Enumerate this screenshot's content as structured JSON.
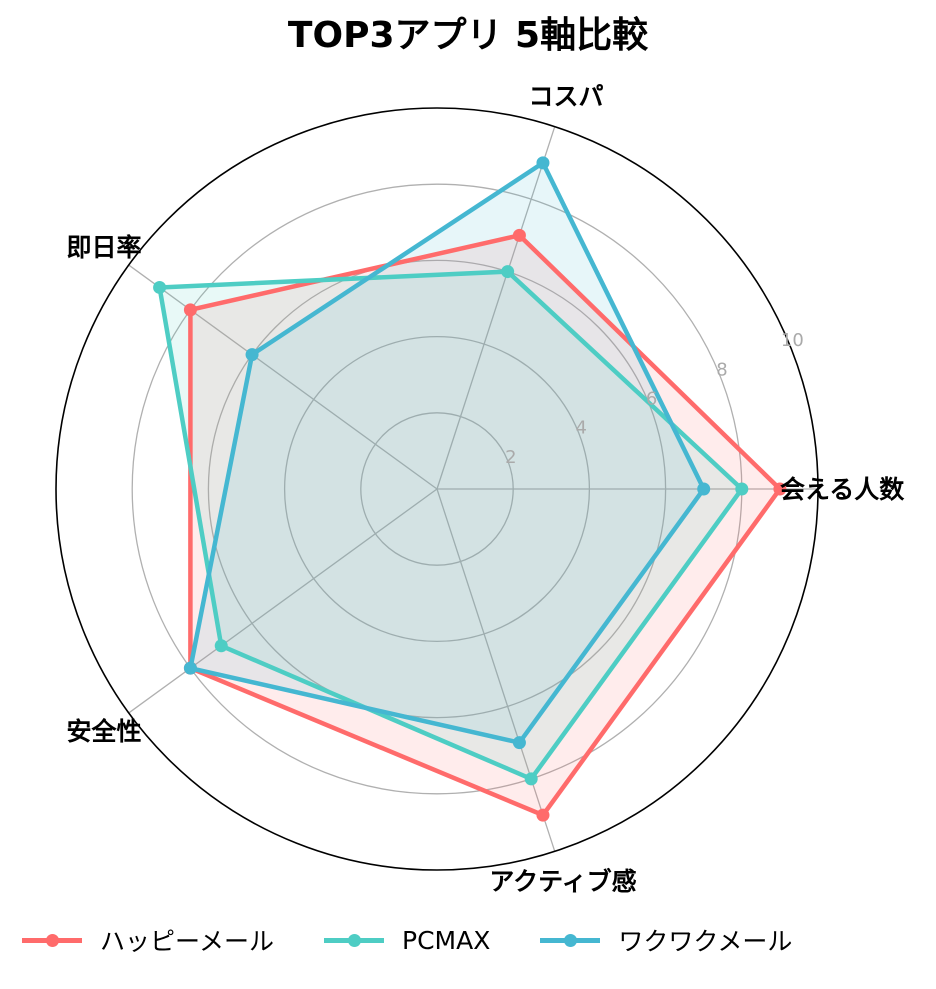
{
  "chart_data": {
    "type": "radar",
    "title": "TOP3アプリ 5軸比較",
    "axes": [
      "会える人数",
      "コスパ",
      "即日率",
      "安全性",
      "アクティブ感"
    ],
    "rlim": [
      0,
      10
    ],
    "rticks": [
      2,
      4,
      6,
      8,
      10
    ],
    "grid": true,
    "legend_position": "bottom",
    "series": [
      {
        "name": "ハッピーメール",
        "color": "#FF6B6B",
        "values": [
          9,
          7,
          8,
          8,
          9
        ]
      },
      {
        "name": "PCMAX",
        "color": "#4ECDC4",
        "values": [
          8,
          6,
          9,
          7,
          8
        ]
      },
      {
        "name": "ワクワクメール",
        "color": "#45B7D1",
        "values": [
          7,
          9,
          6,
          8,
          7
        ]
      }
    ]
  },
  "title": "TOP3アプリ 5軸比較",
  "legend": [
    {
      "label": "ハッピーメール",
      "color": "#FF6B6B"
    },
    {
      "label": "PCMAX",
      "color": "#4ECDC4"
    },
    {
      "label": "ワクワクメール",
      "color": "#45B7D1"
    }
  ]
}
